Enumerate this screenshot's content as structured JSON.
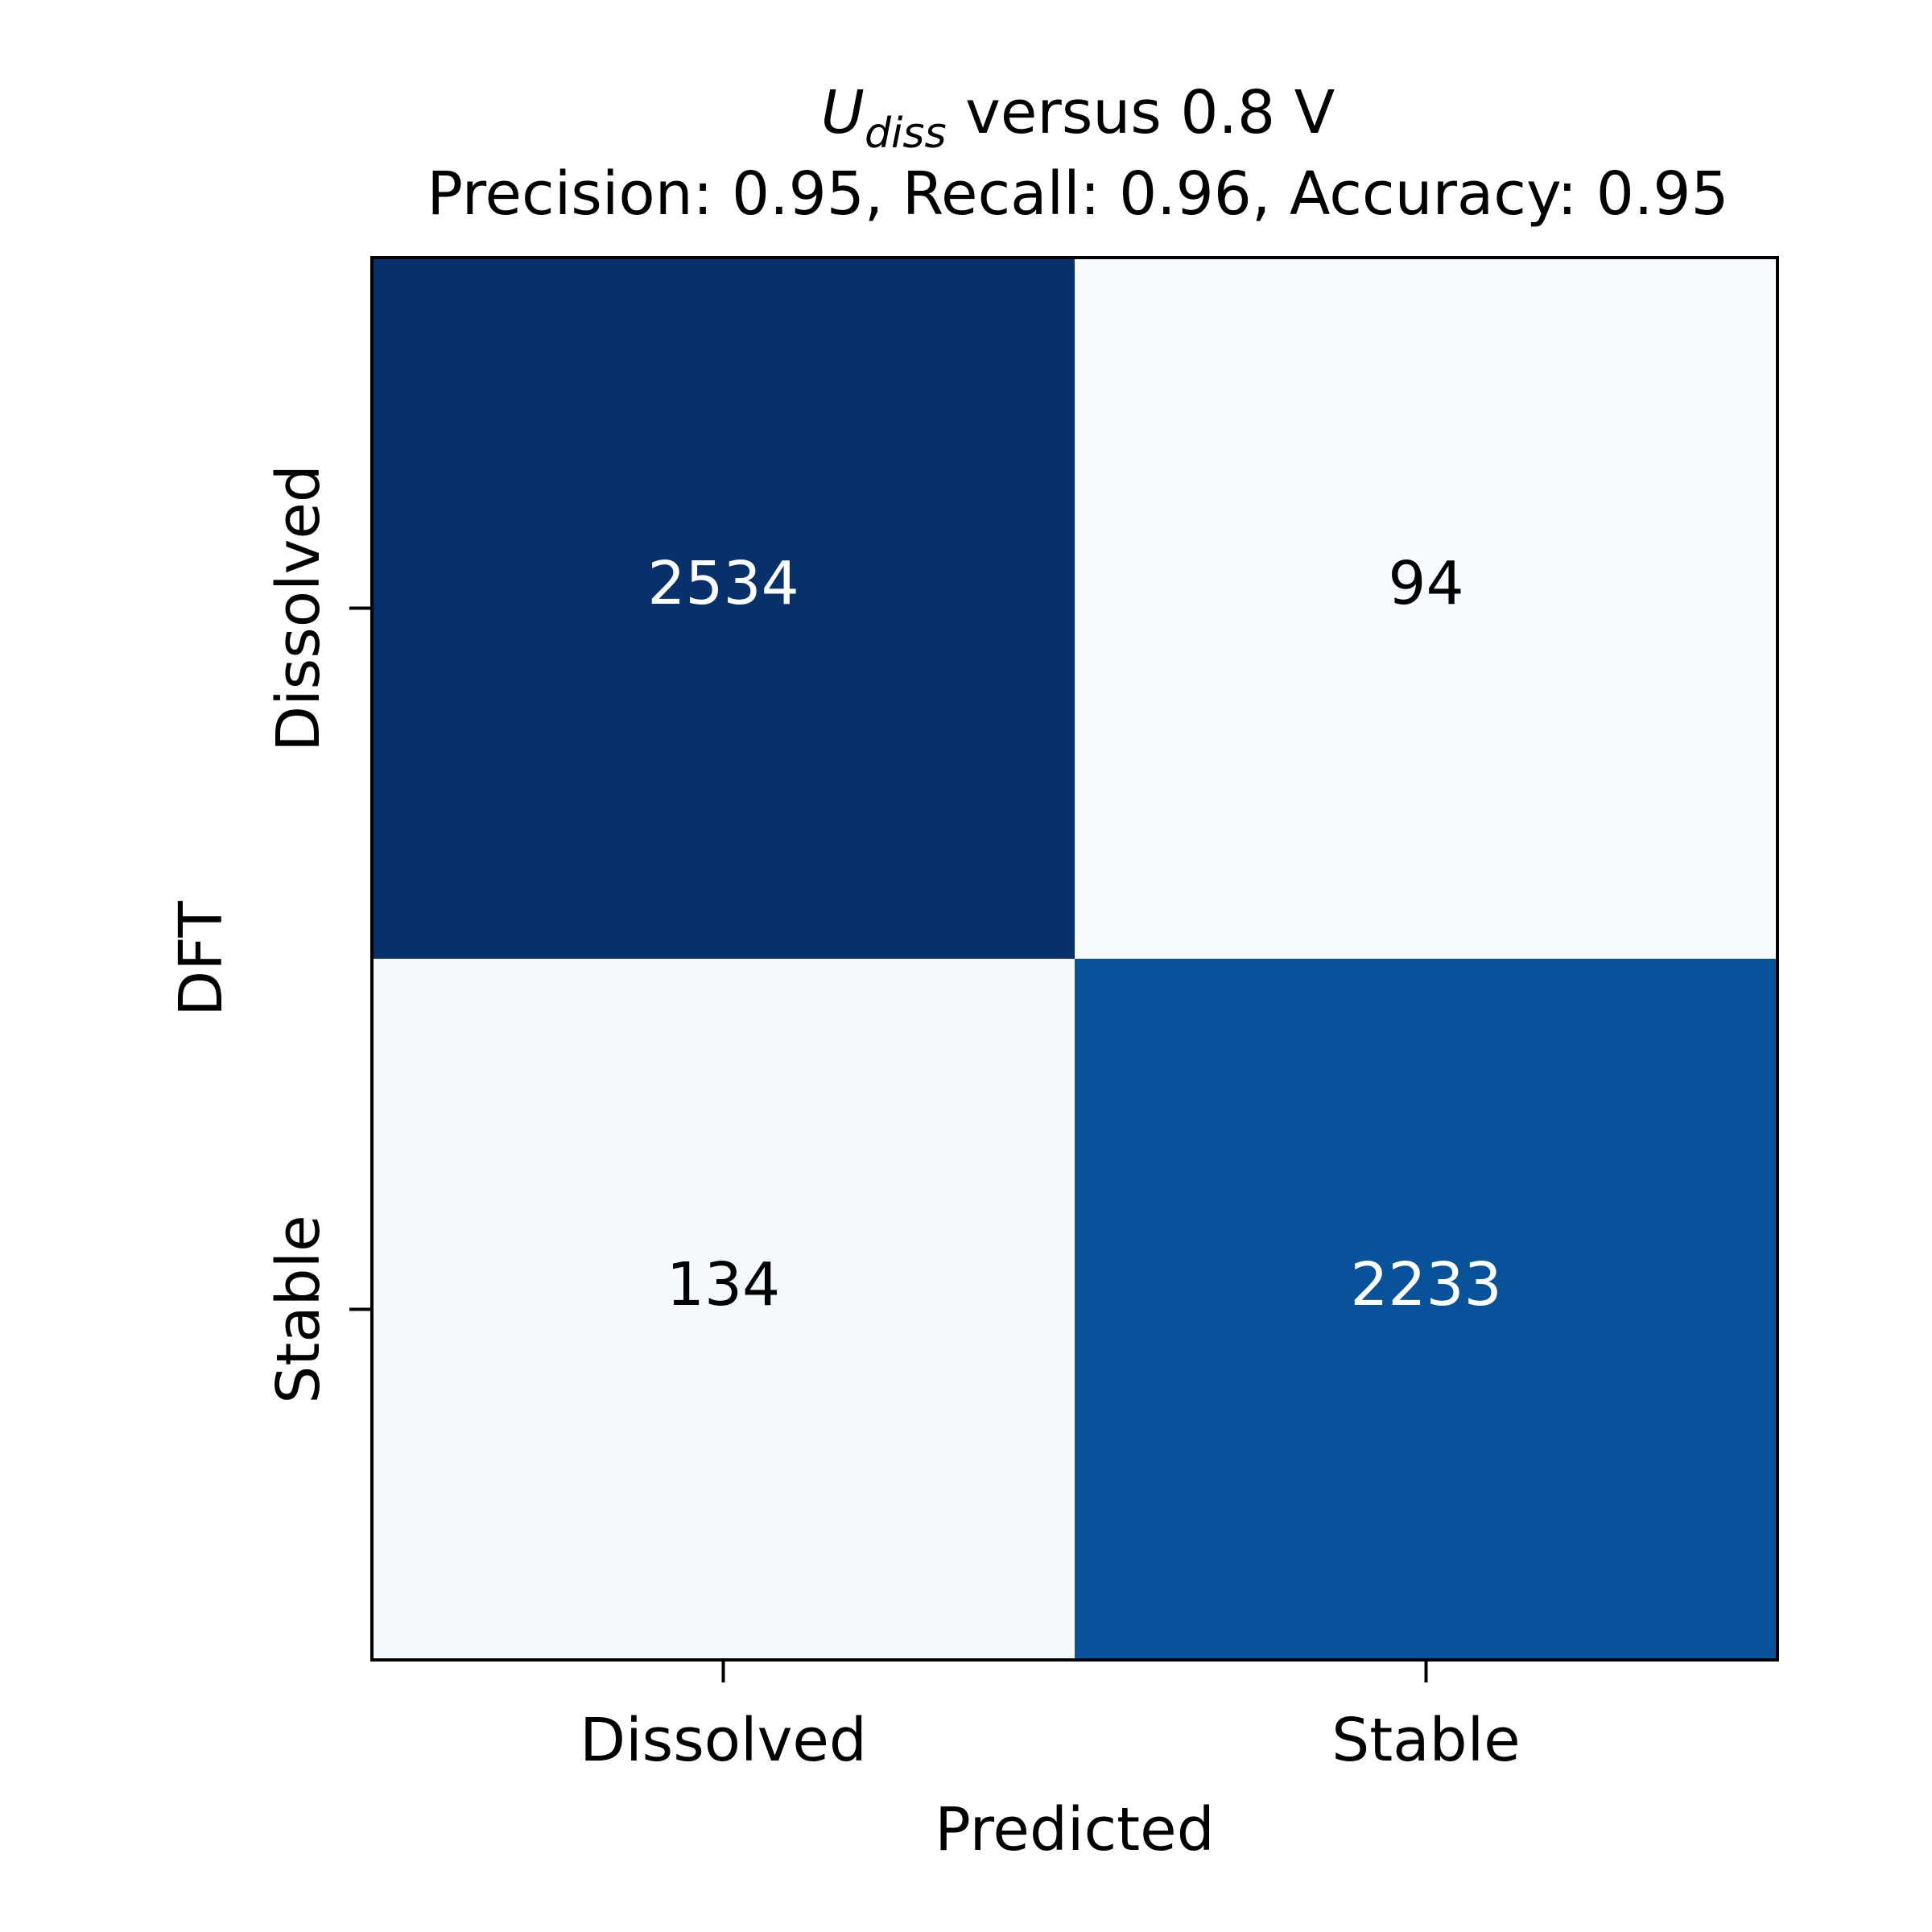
{
  "chart_data": {
    "type": "heatmap",
    "title": {
      "symbol": "U",
      "subscript": "diss",
      "rest": " versus 0.8 V"
    },
    "subtitle": "Precision: 0.95, Recall: 0.96, Accuracy: 0.95",
    "xlabel": "Predicted",
    "ylabel": "DFT",
    "x_categories": [
      "Dissolved",
      "Stable"
    ],
    "y_categories": [
      "Dissolved",
      "Stable"
    ],
    "matrix": [
      [
        2534,
        94
      ],
      [
        134,
        2233
      ]
    ],
    "colormap": "Blues",
    "colors": {
      "dark": "#08306b",
      "light": "#f7fbff",
      "text_dark": "#000000",
      "text_light": "#ffffff"
    }
  }
}
